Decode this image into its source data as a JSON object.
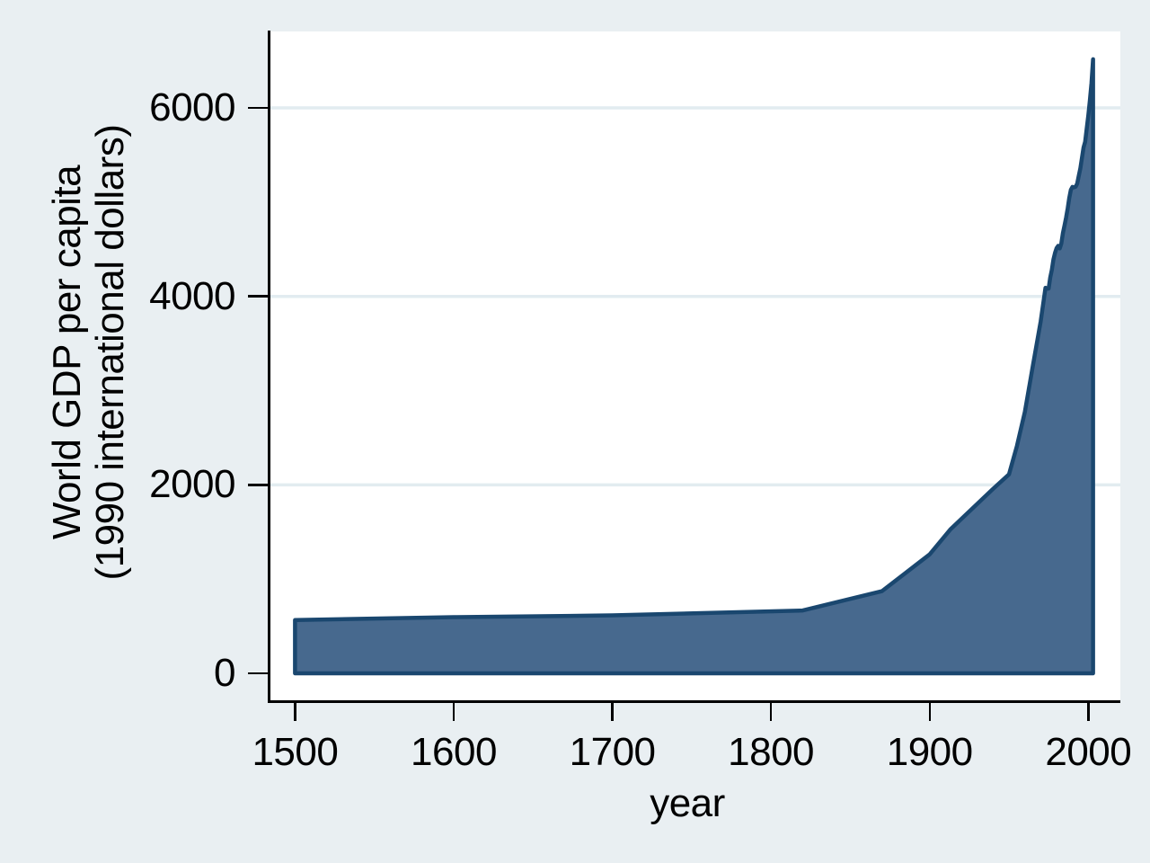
{
  "chart_data": {
    "type": "area",
    "title": "",
    "xlabel": "year",
    "ylabel_lines": [
      "World GDP per capita",
      "(1990 international dollars)"
    ],
    "series": [
      {
        "name": "World GDP per capita (1990 international dollars)",
        "points": [
          [
            1500,
            566
          ],
          [
            1600,
            596
          ],
          [
            1700,
            615
          ],
          [
            1820,
            667
          ],
          [
            1870,
            873
          ],
          [
            1900,
            1262
          ],
          [
            1913,
            1526
          ],
          [
            1940,
            1958
          ],
          [
            1950,
            2111
          ],
          [
            1955,
            2412
          ],
          [
            1960,
            2773
          ],
          [
            1965,
            3259
          ],
          [
            1970,
            3736
          ],
          [
            1973,
            4091
          ],
          [
            1974,
            4082
          ],
          [
            1975,
            4083
          ],
          [
            1976,
            4200
          ],
          [
            1977,
            4280
          ],
          [
            1978,
            4390
          ],
          [
            1979,
            4460
          ],
          [
            1980,
            4512
          ],
          [
            1981,
            4536
          ],
          [
            1982,
            4509
          ],
          [
            1983,
            4562
          ],
          [
            1984,
            4672
          ],
          [
            1985,
            4752
          ],
          [
            1986,
            4836
          ],
          [
            1987,
            4932
          ],
          [
            1988,
            5045
          ],
          [
            1989,
            5130
          ],
          [
            1990,
            5162
          ],
          [
            1991,
            5157
          ],
          [
            1992,
            5163
          ],
          [
            1993,
            5197
          ],
          [
            1994,
            5280
          ],
          [
            1995,
            5360
          ],
          [
            1996,
            5470
          ],
          [
            1997,
            5580
          ],
          [
            1998,
            5640
          ],
          [
            1999,
            5780
          ],
          [
            2000,
            5920
          ],
          [
            2001,
            6081
          ],
          [
            2002,
            6263
          ],
          [
            2003,
            6516
          ]
        ]
      }
    ],
    "baseline": 0,
    "xlim": [
      1484.5,
      2020.2
    ],
    "ylim": [
      -305,
      6811
    ],
    "x_ticks": [
      1500,
      1600,
      1700,
      1800,
      1900,
      2000
    ],
    "y_ticks": [
      0,
      2000,
      4000,
      6000
    ],
    "y_grid_values": [
      2000,
      4000,
      6000
    ],
    "grid": "horizontal",
    "legend": "none",
    "colors": {
      "background": "#e9eff2",
      "plot_background": "#ffffff",
      "gridline": "#e2ecf0",
      "area_fill": "#47698e",
      "area_stroke": "#1a476f",
      "axis": "#000000",
      "text": "#000000"
    }
  }
}
